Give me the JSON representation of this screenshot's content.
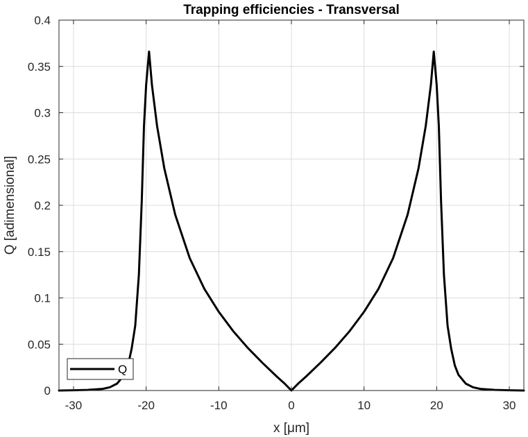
{
  "chart_data": {
    "type": "line",
    "title": "Trapping efficiencies - Transversal",
    "xlabel": "x [μm]",
    "ylabel": "Q [adimensional]",
    "xlim": [
      -32,
      32
    ],
    "ylim": [
      0,
      0.4
    ],
    "grid": true,
    "legend_position": "bottom-left",
    "xticks": [
      -30,
      -20,
      -10,
      0,
      10,
      20,
      30
    ],
    "xtick_labels": [
      "-30",
      "-20",
      "-10",
      "0",
      "10",
      "20",
      "30"
    ],
    "yticks": [
      0,
      0.05,
      0.1,
      0.15,
      0.2,
      0.25,
      0.3,
      0.35,
      0.4
    ],
    "ytick_labels": [
      "0",
      "0.05",
      "0.1",
      "0.15",
      "0.2",
      "0.25",
      "0.3",
      "0.35",
      "0.4"
    ],
    "series": [
      {
        "name": "Q",
        "color": "#000000",
        "x": [
          -32,
          -30,
          -28,
          -26,
          -25,
          -24,
          -23,
          -22.5,
          -22,
          -21.5,
          -21,
          -20.6,
          -20.3,
          -20,
          -19.6,
          -19.2,
          -18.5,
          -17.5,
          -16,
          -14,
          -12,
          -10,
          -8,
          -6,
          -4,
          -2,
          -1,
          0,
          1,
          2,
          4,
          6,
          8,
          10,
          12,
          14,
          16,
          17.5,
          18.5,
          19.2,
          19.6,
          20,
          20.3,
          20.6,
          21,
          21.5,
          22,
          22.5,
          23,
          24,
          25,
          26,
          28,
          30,
          32
        ],
        "y": [
          0.0,
          0.0003,
          0.0007,
          0.0018,
          0.0035,
          0.0075,
          0.017,
          0.027,
          0.045,
          0.07,
          0.125,
          0.205,
          0.285,
          0.33,
          0.366,
          0.33,
          0.286,
          0.24,
          0.19,
          0.143,
          0.11,
          0.085,
          0.064,
          0.046,
          0.03,
          0.015,
          0.008,
          0.0,
          0.008,
          0.015,
          0.03,
          0.046,
          0.064,
          0.085,
          0.11,
          0.143,
          0.19,
          0.24,
          0.286,
          0.33,
          0.366,
          0.33,
          0.285,
          0.205,
          0.125,
          0.07,
          0.045,
          0.027,
          0.017,
          0.0075,
          0.0035,
          0.0018,
          0.0007,
          0.0003,
          0.0
        ]
      }
    ]
  }
}
